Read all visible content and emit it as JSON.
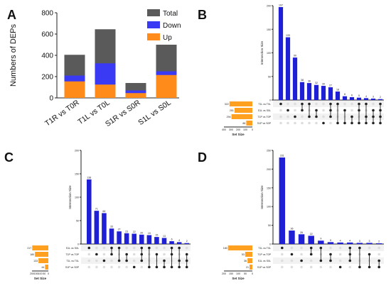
{
  "figure": {
    "labels": [
      "A",
      "B",
      "C",
      "D"
    ]
  },
  "colors": {
    "total": "#5a5a5a",
    "down": "#3a3af5",
    "up": "#ff8c1a",
    "upset_bar": "#1f1fd6",
    "set_bar": "#ffa020",
    "dot_on": "#222222",
    "dot_off": "#dddddd"
  },
  "chart_data": [
    {
      "panel": "A",
      "type": "bar",
      "ylabel": "Numbers of DEPs",
      "ylim": [
        0,
        800
      ],
      "yticks": [
        0,
        200,
        400,
        600,
        800
      ],
      "categories": [
        "T1R vs T0R",
        "T1L vs T0L",
        "S1R vs S0R",
        "S1L vs S0L"
      ],
      "series": [
        {
          "name": "Total",
          "values": [
            405,
            645,
            140,
            500
          ]
        },
        {
          "name": "Down",
          "values": [
            210,
            325,
            70,
            250
          ]
        },
        {
          "name": "Up",
          "values": [
            155,
            125,
            45,
            215
          ]
        }
      ],
      "legend": "top-right"
    },
    {
      "panel": "B",
      "type": "bar",
      "ylabel": "Intersection Size",
      "ylim": [
        0,
        200
      ],
      "yticks": [
        0,
        50,
        100,
        150,
        200
      ],
      "intersections": [
        197,
        133,
        90,
        38,
        36,
        32,
        30,
        27,
        18,
        8,
        6,
        5,
        4,
        3,
        2
      ],
      "sets": [
        "T1L vs T0L",
        "S1L vs S0L",
        "T1P vs T0P",
        "S1P vs S0P"
      ],
      "set_sizes": [
        322,
        251,
        294,
        86
      ],
      "set_axis_label": "Set Size",
      "set_axis_ticks": [
        400,
        300,
        200,
        100,
        0
      ],
      "set_max": 400
    },
    {
      "panel": "C",
      "type": "bar",
      "ylabel": "Intersection Size",
      "ylim": [
        0,
        200
      ],
      "yticks": [
        0,
        50,
        100,
        150,
        200
      ],
      "intersections": [
        138,
        71,
        66,
        33,
        27,
        23,
        22,
        20,
        19,
        15,
        13,
        6,
        4,
        2
      ],
      "sets": [
        "S1L vs S0L",
        "T1P vs T0P",
        "T1L vs T0L",
        "S1P vs S0P"
      ],
      "set_sizes": [
        217,
        180,
        133,
        44
      ],
      "set_axis_label": "Set Size",
      "set_axis_ticks": [
        200,
        150,
        100,
        50,
        0
      ],
      "set_max": 220
    },
    {
      "panel": "D",
      "type": "bar",
      "ylabel": "Intersection Size",
      "ylim": [
        0,
        250
      ],
      "yticks": [
        0,
        50,
        100,
        150,
        200,
        250
      ],
      "intersections": [
        231,
        36,
        26,
        22,
        9,
        5,
        4,
        4,
        3,
        3,
        2
      ],
      "sets": [
        "T1L vs T0L",
        "T1P vs T0P",
        "S1L vs S0L",
        "S1P vs S0P"
      ],
      "set_sizes": [
        180,
        53,
        36,
        21
      ],
      "set_axis_label": "Set Size",
      "set_axis_ticks": [
        200,
        150,
        100,
        50,
        0
      ],
      "set_max": 210
    }
  ]
}
